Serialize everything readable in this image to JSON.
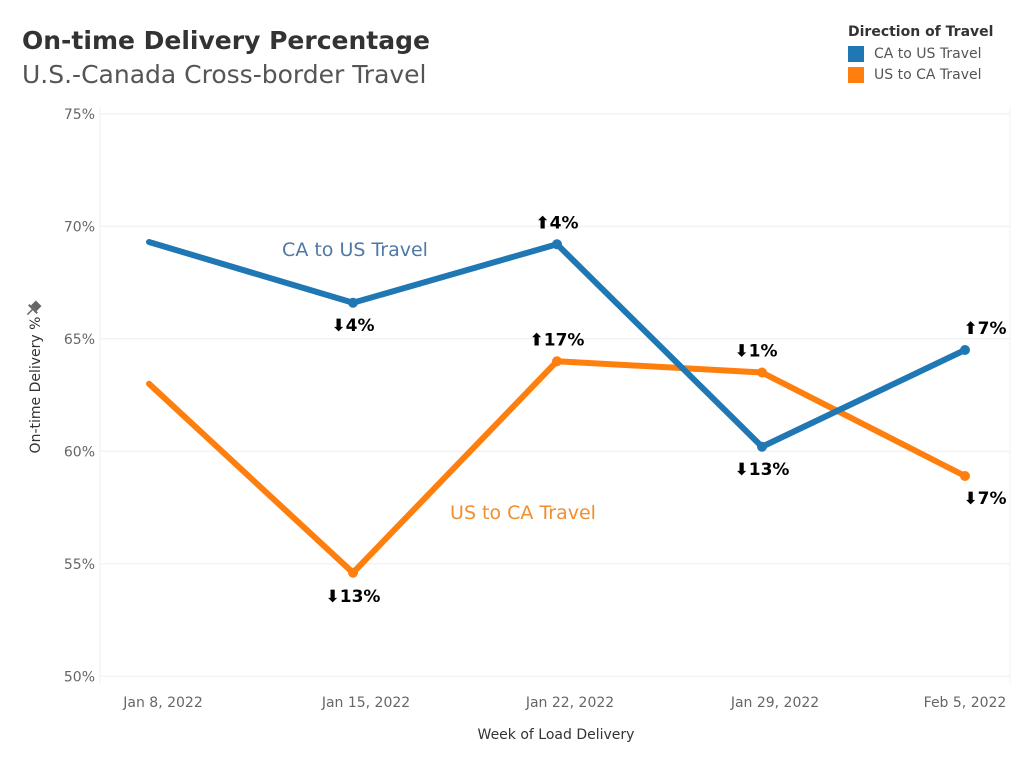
{
  "header": {
    "title": "On-time Delivery Percentage",
    "subtitle": "U.S.-Canada Cross-border Travel"
  },
  "legend": {
    "title": "Direction of Travel",
    "items": [
      {
        "label": "CA to US Travel",
        "color": "#1f77b4"
      },
      {
        "label": "US to CA Travel",
        "color": "#ff7f0e"
      }
    ]
  },
  "pin_icon": "pin-icon",
  "chart_data": {
    "type": "line",
    "title": "On-time Delivery Percentage",
    "subtitle": "U.S.-Canada Cross-border Travel",
    "xlabel": "Week of Load Delivery",
    "ylabel": "On-time Delivery %",
    "categories": [
      "Jan 8, 2022",
      "Jan 15, 2022",
      "Jan 22, 2022",
      "Jan 29, 2022",
      "Feb 5, 2022"
    ],
    "ylim": [
      50,
      75
    ],
    "yticks": [
      "50%",
      "55%",
      "60%",
      "65%",
      "70%",
      "75%"
    ],
    "ytick_values": [
      50,
      55,
      60,
      65,
      70,
      75
    ],
    "grid": true,
    "legend_position": "top-right",
    "series": [
      {
        "name": "CA to US Travel",
        "color": "#1f77b4",
        "label_color": "#4e79a7",
        "values": [
          69.3,
          66.6,
          69.2,
          60.2,
          64.5
        ],
        "changes": [
          "",
          "⬇4%",
          "⬆4%",
          "⬇13%",
          "⬆7%"
        ],
        "change_placement": [
          "",
          "below",
          "above",
          "below",
          "above"
        ]
      },
      {
        "name": "US to CA Travel",
        "color": "#ff7f0e",
        "label_color": "#f28e2b",
        "values": [
          63.0,
          54.6,
          64.0,
          63.5,
          58.9
        ],
        "changes": [
          "",
          "⬇13%",
          "⬆17%",
          "⬇1%",
          "⬇7%"
        ],
        "change_placement": [
          "",
          "below",
          "above",
          "above",
          "below"
        ]
      }
    ]
  }
}
